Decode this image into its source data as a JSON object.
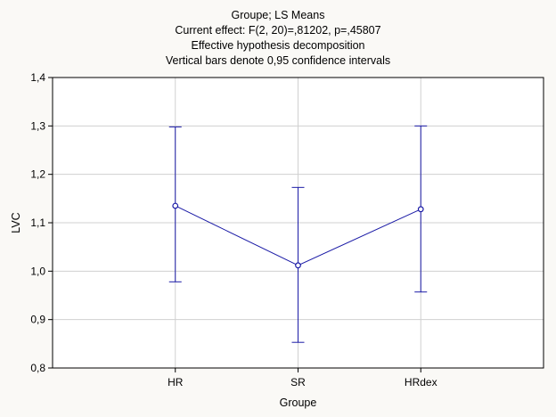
{
  "chart_data": {
    "type": "line",
    "title_lines": [
      "Groupe; LS Means",
      "Current effect: F(2, 20)=,81202, p=,45807",
      "Effective hypothesis decomposition",
      "Vertical bars denote 0,95 confidence intervals"
    ],
    "xlabel": "Groupe",
    "ylabel": "LVC",
    "categories": [
      "HR",
      "SR",
      "HRdex"
    ],
    "series": [
      {
        "values": [
          1.135,
          1.012,
          1.128
        ],
        "ci_lower": [
          0.978,
          0.853,
          0.957
        ],
        "ci_upper": [
          1.298,
          1.173,
          1.3
        ]
      }
    ],
    "ylim": [
      0.8,
      1.4
    ],
    "yticks": [
      0.8,
      0.9,
      1.0,
      1.1,
      1.2,
      1.3,
      1.4
    ],
    "ytick_labels": [
      "0,8",
      "0,9",
      "1,0",
      "1,1",
      "1,2",
      "1,3",
      "1,4"
    ],
    "grid": true,
    "colors": {
      "series": "#1a1aa6",
      "grid": "#d0d0d0",
      "frame": "#000000",
      "background": "#ffffff",
      "page": "#faf9f6"
    }
  }
}
